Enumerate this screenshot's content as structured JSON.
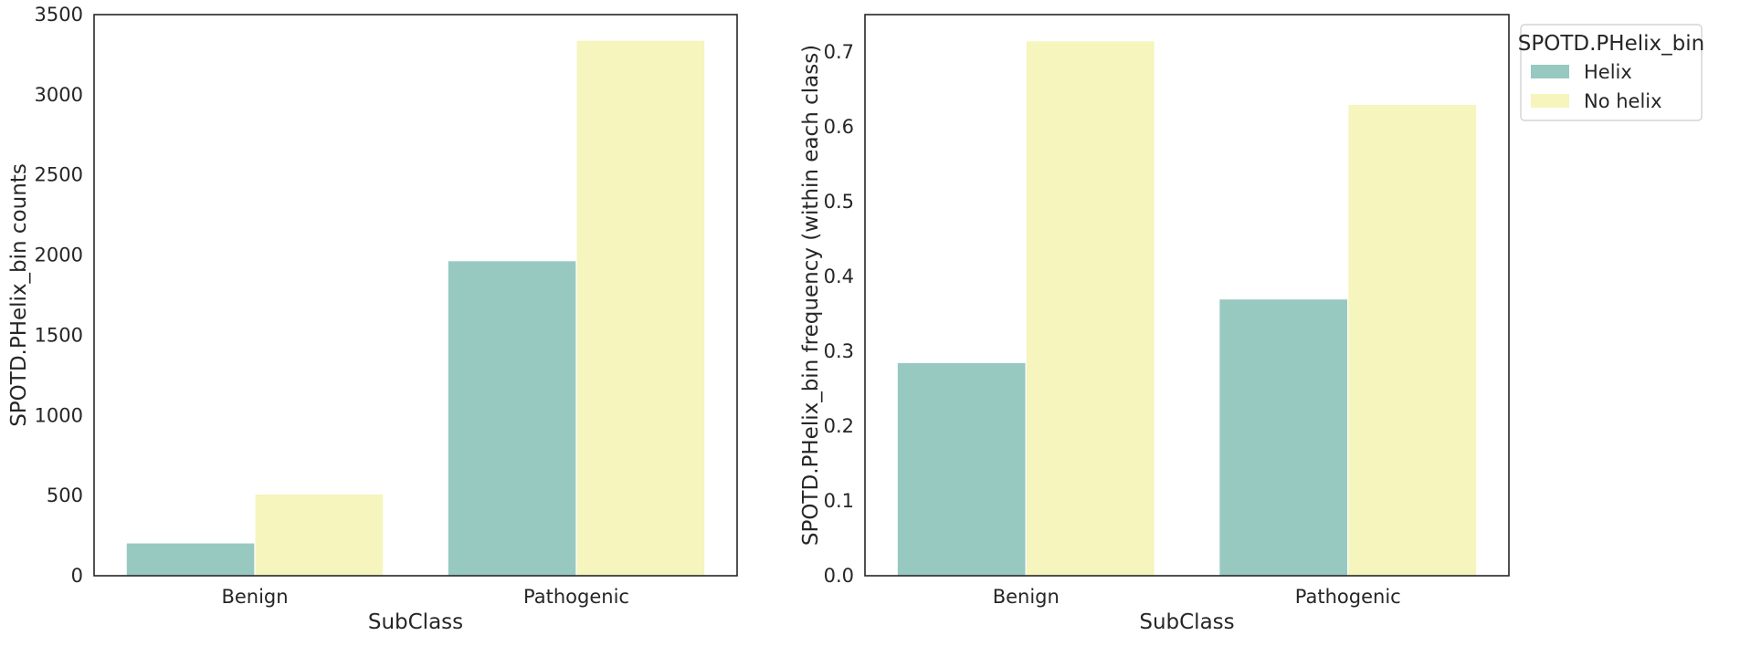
{
  "chart_data": [
    {
      "type": "bar",
      "categories": [
        "Benign",
        "Pathogenic"
      ],
      "series": [
        {
          "name": "Helix",
          "values": [
            205,
            1965
          ]
        },
        {
          "name": "No helix",
          "values": [
            510,
            3340
          ]
        }
      ],
      "xlabel": "SubClass",
      "ylabel": "SPOTD.PHelix_bin counts",
      "ylim": [
        0,
        3500
      ],
      "yticks": [
        0,
        500,
        1000,
        1500,
        2000,
        2500,
        3000,
        3500
      ],
      "grid": false
    },
    {
      "type": "bar",
      "categories": [
        "Benign",
        "Pathogenic"
      ],
      "series": [
        {
          "name": "Helix",
          "values": [
            0.285,
            0.37
          ]
        },
        {
          "name": "No helix",
          "values": [
            0.715,
            0.63
          ]
        }
      ],
      "xlabel": "SubClass",
      "ylabel": "SPOTD.PHelix_bin frequency (within each class)",
      "ylim": [
        0,
        0.75
      ],
      "yticks": [
        "0.0",
        "0.1",
        "0.2",
        "0.3",
        "0.4",
        "0.5",
        "0.6",
        "0.7"
      ],
      "grid": false,
      "legend": {
        "title": "SPOTD.PHelix_bin",
        "placement": "outside upper-right",
        "entries": [
          "Helix",
          "No helix"
        ]
      }
    }
  ],
  "colors": {
    "Helix": "#97c9c1",
    "No helix": "#f5f5bd",
    "axis": "#262626",
    "text": "#262626"
  }
}
